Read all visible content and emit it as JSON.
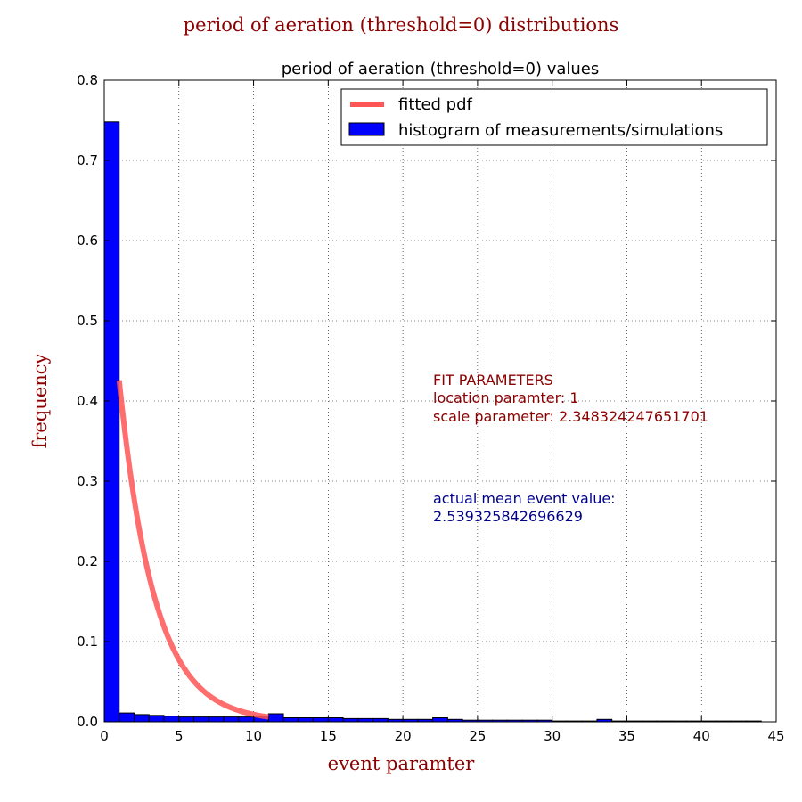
{
  "chart_data": {
    "type": "bar",
    "suptitle": "period of aeration (threshold=0) distributions",
    "title": "period of aeration (threshold=0) values",
    "xlabel": "event paramter",
    "ylabel": "frequency",
    "xlim": [
      0,
      45
    ],
    "ylim": [
      0,
      0.8
    ],
    "xticks": [
      "0",
      "5",
      "10",
      "15",
      "20",
      "25",
      "30",
      "35",
      "40",
      "45"
    ],
    "yticks": [
      "0.0",
      "0.1",
      "0.2",
      "0.3",
      "0.4",
      "0.5",
      "0.6",
      "0.7",
      "0.8"
    ],
    "grid": true,
    "legend": {
      "placement": "top-right",
      "fitted_label": "fitted pdf",
      "hist_label": "histogram of measurements/simulations"
    },
    "colors": {
      "histogram": "#0000ff",
      "fit": "#ff5555",
      "annotation_fit": "#8b0000",
      "annotation_mean": "#00008b"
    },
    "histogram": {
      "bin_start": 0,
      "bin_width": 1.0,
      "values": [
        0.748,
        0.011,
        0.009,
        0.008,
        0.007,
        0.006,
        0.006,
        0.006,
        0.006,
        0.006,
        0.006,
        0.01,
        0.005,
        0.005,
        0.005,
        0.005,
        0.004,
        0.004,
        0.004,
        0.003,
        0.003,
        0.003,
        0.005,
        0.003,
        0.002,
        0.002,
        0.002,
        0.002,
        0.002,
        0.002,
        0.001,
        0.001,
        0.001,
        0.003,
        0.001,
        0.001,
        0.001,
        0.001,
        0.001,
        0.001,
        0.001,
        0.001,
        0.001,
        0.001
      ]
    },
    "fitted_pdf": {
      "distribution": "exponential",
      "location": 1,
      "scale": 2.348324247651701,
      "x_range": [
        1,
        11
      ]
    },
    "annotations": {
      "fit_heading": "FIT PARAMETERS",
      "fit_location": "location paramter: 1",
      "fit_scale": "scale parameter: 2.348324247651701",
      "mean_heading": "actual mean event value:",
      "mean_value": "2.539325842696629"
    }
  }
}
